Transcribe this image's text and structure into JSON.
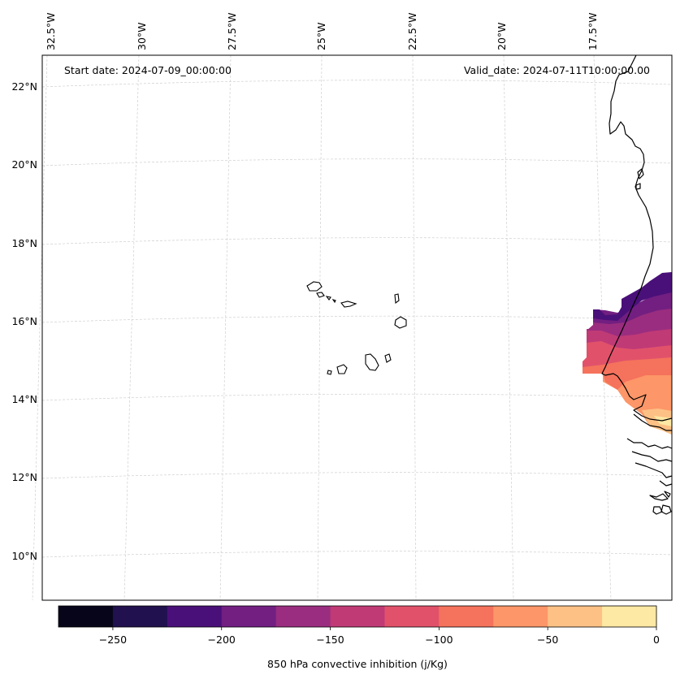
{
  "map": {
    "start_date_label": "Start date: 2024-07-09_00:00:00",
    "valid_date_label": "Valid_date: 2024-07-11T10:00:00.00",
    "lon_labels": [
      "32.5°W",
      "30°W",
      "27.5°W",
      "25°W",
      "22.5°W",
      "20°W",
      "17.5°W"
    ],
    "lat_labels": [
      "22°N",
      "20°N",
      "18°N",
      "16°N",
      "14°N",
      "12°N",
      "10°N"
    ],
    "gridlines": true,
    "field": "850 hPa convective inhibition"
  },
  "colorbar": {
    "label": "850 hPa convective inhibition (j/Kg)",
    "tick_labels": [
      "−250",
      "−200",
      "−150",
      "−100",
      "−50",
      "0"
    ],
    "ticks": [
      -250,
      -200,
      -150,
      -100,
      -50,
      0
    ],
    "range": [
      -275,
      0
    ],
    "levels": [
      -275,
      -250,
      -225,
      -200,
      -175,
      -150,
      -125,
      -100,
      -75,
      -50,
      -25,
      0
    ],
    "colors": [
      "#06051a",
      "#21114e",
      "#4a1079",
      "#721f81",
      "#9a2d7f",
      "#c03a76",
      "#e1526a",
      "#f5725c",
      "#fd9668",
      "#fec185",
      "#fde8a4"
    ]
  }
}
